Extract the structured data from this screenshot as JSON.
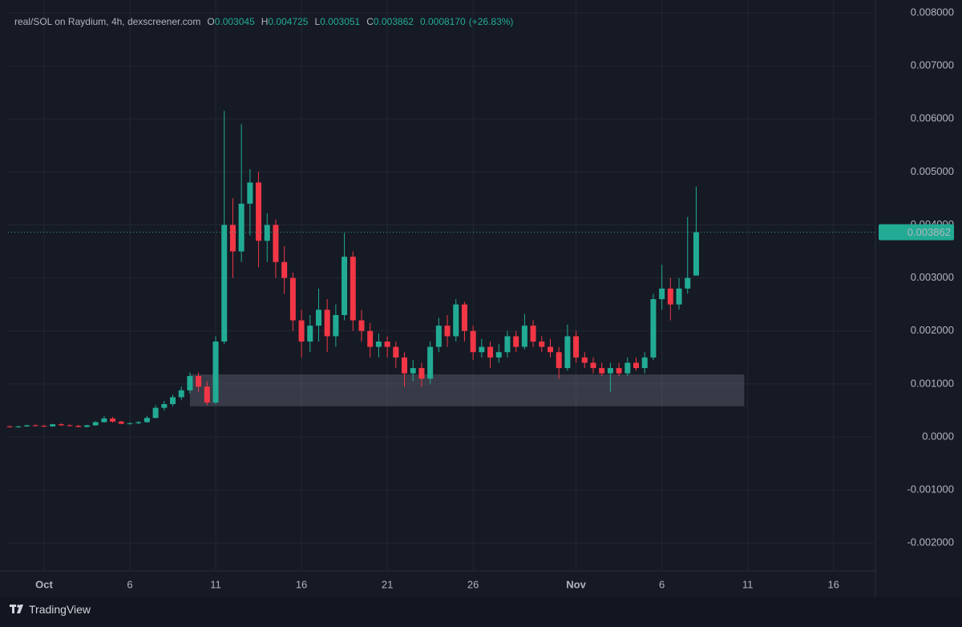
{
  "header": {
    "pair": "real/SOL on Raydium, 4h, dexscreener.com",
    "o_label": "O",
    "o": "0.003045",
    "h_label": "H",
    "h": "0.004725",
    "l_label": "L",
    "l": "0.003051",
    "c_label": "C",
    "c": "0.003862",
    "change": "0.0008170",
    "change_pct": "(+26.83%)"
  },
  "footer": {
    "brand": "TradingView"
  },
  "chart_data": {
    "type": "candlestick",
    "up_color": "#22ab94",
    "down_color": "#f23645",
    "xlim": [
      -0.2,
      100.7
    ],
    "xticks": [
      {
        "value": 4,
        "label": "Oct"
      },
      {
        "value": 14,
        "label": "6"
      },
      {
        "value": 24,
        "label": "11"
      },
      {
        "value": 34,
        "label": "16"
      },
      {
        "value": 44,
        "label": "21"
      },
      {
        "value": 54,
        "label": "26"
      },
      {
        "value": 66,
        "label": "Nov"
      },
      {
        "value": 76,
        "label": "6"
      },
      {
        "value": 86,
        "label": "11"
      },
      {
        "value": 96,
        "label": "16"
      }
    ],
    "ylim": [
      -0.002525,
      0.008242
    ],
    "yticks": [
      {
        "value": 0.008,
        "label": "0.008000"
      },
      {
        "value": 0.007,
        "label": "0.007000"
      },
      {
        "value": 0.006,
        "label": "0.006000"
      },
      {
        "value": 0.005,
        "label": "0.005000"
      },
      {
        "value": 0.004,
        "label": "0.004000"
      },
      {
        "value": 0.003,
        "label": "0.003000"
      },
      {
        "value": 0.002,
        "label": "0.002000"
      },
      {
        "value": 0.001,
        "label": "0.001000"
      },
      {
        "value": 0,
        "label": "0.0000"
      },
      {
        "value": -0.001,
        "label": "-0.001000"
      },
      {
        "value": -0.002,
        "label": "-0.002000"
      }
    ],
    "grid": true,
    "last_price": 0.003862,
    "zone": {
      "x": [
        21,
        85.6
      ],
      "y": [
        0.00058,
        0.00118
      ]
    },
    "open": [
      0.0002,
      0.00019,
      0.0002,
      0.00022,
      0.00021,
      0.0002,
      0.00024,
      0.00022,
      0.00021,
      0.00019,
      0.00022,
      0.00028,
      0.00035,
      0.00029,
      0.00025,
      0.00026,
      0.00028,
      0.00036,
      0.00055,
      0.00062,
      0.00075,
      0.00088,
      0.00115,
      0.00095,
      0.00065,
      0.0018,
      0.004,
      0.0035,
      0.0044,
      0.0048,
      0.0037,
      0.004,
      0.0033,
      0.003,
      0.0022,
      0.0018,
      0.0021,
      0.0024,
      0.0019,
      0.0023,
      0.0034,
      0.0022,
      0.002,
      0.0017,
      0.0018,
      0.0017,
      0.0015,
      0.0012,
      0.0013,
      0.0011,
      0.0017,
      0.0021,
      0.0019,
      0.0025,
      0.002,
      0.0016,
      0.0017,
      0.0015,
      0.0016,
      0.0019,
      0.0017,
      0.0021,
      0.0018,
      0.0017,
      0.0016,
      0.0013,
      0.0019,
      0.0015,
      0.0014,
      0.0013,
      0.0012,
      0.0013,
      0.0012,
      0.0014,
      0.0013,
      0.0015,
      0.0026,
      0.0028,
      0.0025,
      0.0028,
      0.003045
    ],
    "high": [
      0.00022,
      0.00021,
      0.00023,
      0.00024,
      0.00023,
      0.00025,
      0.00026,
      0.00024,
      0.00023,
      0.00023,
      0.0003,
      0.0004,
      0.00038,
      0.00031,
      0.00028,
      0.0003,
      0.0004,
      0.0006,
      0.00068,
      0.0008,
      0.00095,
      0.00122,
      0.00122,
      0.00105,
      0.0019,
      0.00615,
      0.0045,
      0.0059,
      0.00505,
      0.005,
      0.00422,
      0.0041,
      0.0036,
      0.0031,
      0.0024,
      0.0023,
      0.0028,
      0.0026,
      0.0025,
      0.00385,
      0.0035,
      0.0024,
      0.00215,
      0.00195,
      0.0019,
      0.0018,
      0.0016,
      0.00145,
      0.0014,
      0.0018,
      0.00225,
      0.0023,
      0.0026,
      0.00255,
      0.0021,
      0.00185,
      0.0018,
      0.00175,
      0.002,
      0.002,
      0.00232,
      0.0022,
      0.0019,
      0.00185,
      0.0017,
      0.00212,
      0.002,
      0.0016,
      0.0015,
      0.0014,
      0.0014,
      0.0014,
      0.0015,
      0.0015,
      0.0016,
      0.0027,
      0.00325,
      0.003,
      0.003,
      0.00415,
      0.004725
    ],
    "low": [
      0.00018,
      0.00017,
      0.00019,
      0.0002,
      0.00019,
      0.00019,
      0.00021,
      0.0002,
      0.00018,
      0.00018,
      0.00021,
      0.00027,
      0.00027,
      0.00024,
      0.00023,
      0.00024,
      0.00027,
      0.00035,
      0.0005,
      0.00058,
      0.0007,
      0.00082,
      0.00085,
      0.0006,
      0.00062,
      0.00175,
      0.003,
      0.0033,
      0.0038,
      0.0032,
      0.0033,
      0.003,
      0.0027,
      0.002,
      0.0015,
      0.0016,
      0.0018,
      0.0016,
      0.0017,
      0.0022,
      0.002,
      0.0018,
      0.0015,
      0.0015,
      0.0015,
      0.0013,
      0.00095,
      0.00105,
      0.00095,
      0.001,
      0.0016,
      0.0017,
      0.0018,
      0.0018,
      0.00145,
      0.0015,
      0.0013,
      0.0014,
      0.0015,
      0.0016,
      0.00165,
      0.0017,
      0.0016,
      0.0015,
      0.0011,
      0.00125,
      0.0014,
      0.0013,
      0.0012,
      0.00115,
      0.00085,
      0.00115,
      0.00115,
      0.00125,
      0.0012,
      0.00145,
      0.0024,
      0.0022,
      0.0024,
      0.0027,
      0.003051
    ],
    "close": [
      0.00019,
      0.0002,
      0.00022,
      0.00021,
      0.0002,
      0.00024,
      0.00022,
      0.00021,
      0.00019,
      0.00022,
      0.00028,
      0.00035,
      0.00029,
      0.00025,
      0.00026,
      0.00028,
      0.00036,
      0.00055,
      0.00062,
      0.00075,
      0.00088,
      0.00115,
      0.00095,
      0.00065,
      0.0018,
      0.004,
      0.0035,
      0.0044,
      0.0048,
      0.0037,
      0.004,
      0.0033,
      0.003,
      0.0022,
      0.0018,
      0.0021,
      0.0024,
      0.0019,
      0.0023,
      0.0034,
      0.0022,
      0.002,
      0.0017,
      0.0018,
      0.0017,
      0.0015,
      0.0012,
      0.0013,
      0.0011,
      0.0017,
      0.0021,
      0.0019,
      0.0025,
      0.002,
      0.0016,
      0.0017,
      0.0015,
      0.0016,
      0.0019,
      0.0017,
      0.0021,
      0.0018,
      0.0017,
      0.0016,
      0.0013,
      0.0019,
      0.0015,
      0.0014,
      0.0013,
      0.0012,
      0.0013,
      0.0012,
      0.0014,
      0.0013,
      0.0015,
      0.0026,
      0.0028,
      0.0025,
      0.0028,
      0.003,
      0.003862
    ]
  }
}
